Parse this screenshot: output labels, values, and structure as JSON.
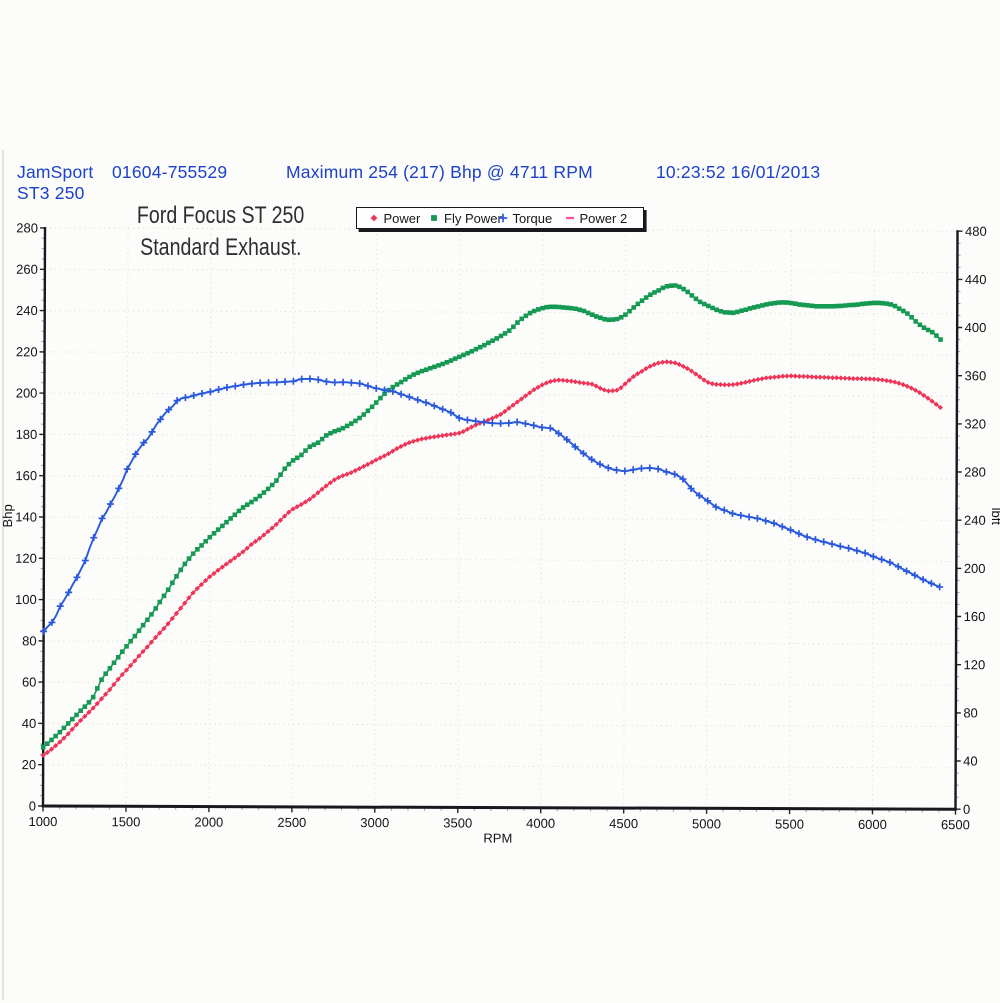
{
  "page": {
    "background": "#fcfcfb"
  },
  "header": {
    "color": "#1c41cc",
    "company": "JamSport",
    "model": "ST3 250",
    "phone": "01604-755529",
    "max_annotation": "Maximum 254 (217) Bhp @ 4711 RPM",
    "timestamp": "10:23:52 16/01/2013"
  },
  "chart_title": {
    "line1": "Ford Focus ST 250",
    "line2": "Standard Exhaust.",
    "color": "#2e2e2e"
  },
  "legend": {
    "items": [
      {
        "label": "Power",
        "marker": "diamond",
        "color": "#ee3557"
      },
      {
        "label": "Fly Power",
        "marker": "square",
        "color": "#169a53"
      },
      {
        "label": "Torque",
        "marker": "plus",
        "color": "#2b59dd"
      },
      {
        "label": "Power 2",
        "marker": "dash",
        "color": "#fa4ea3"
      }
    ]
  },
  "chart_data": {
    "type": "line",
    "title": "Ford Focus ST 250 Standard Exhaust.",
    "xlabel": "RPM",
    "left_ylabel": "Bhp",
    "right_ylabel": "lbft",
    "xlim": [
      1000,
      6500
    ],
    "left_ylim": [
      0,
      280
    ],
    "right_ylim": [
      0,
      480
    ],
    "grid": true,
    "legend_position": "top",
    "x_ticks": [
      1000,
      1500,
      2000,
      2500,
      3000,
      3500,
      4000,
      4500,
      5000,
      5500,
      6000,
      6500
    ],
    "left_y_ticks": [
      0,
      20,
      40,
      60,
      80,
      100,
      120,
      140,
      160,
      180,
      200,
      220,
      240,
      260,
      280
    ],
    "right_y_ticks": [
      0,
      40,
      80,
      120,
      160,
      200,
      240,
      280,
      320,
      360,
      400,
      440,
      480
    ],
    "x": [
      1000,
      1025,
      1050,
      1075,
      1100,
      1125,
      1150,
      1175,
      1200,
      1225,
      1250,
      1275,
      1300,
      1325,
      1350,
      1375,
      1400,
      1425,
      1450,
      1475,
      1500,
      1525,
      1550,
      1575,
      1600,
      1625,
      1650,
      1675,
      1700,
      1725,
      1750,
      1775,
      1800,
      1825,
      1850,
      1875,
      1900,
      1925,
      1950,
      1975,
      2000,
      2025,
      2050,
      2075,
      2100,
      2125,
      2150,
      2175,
      2200,
      2225,
      2250,
      2275,
      2300,
      2325,
      2350,
      2375,
      2400,
      2425,
      2450,
      2475,
      2500,
      2525,
      2550,
      2575,
      2600,
      2625,
      2650,
      2675,
      2700,
      2725,
      2750,
      2775,
      2800,
      2825,
      2850,
      2875,
      2900,
      2925,
      2950,
      2975,
      3000,
      3025,
      3050,
      3075,
      3100,
      3125,
      3150,
      3175,
      3200,
      3225,
      3250,
      3275,
      3300,
      3325,
      3350,
      3375,
      3400,
      3425,
      3450,
      3475,
      3500,
      3525,
      3550,
      3575,
      3600,
      3625,
      3650,
      3675,
      3700,
      3725,
      3750,
      3775,
      3800,
      3825,
      3850,
      3875,
      3900,
      3925,
      3950,
      3975,
      4000,
      4025,
      4050,
      4075,
      4100,
      4125,
      4150,
      4175,
      4200,
      4225,
      4250,
      4275,
      4300,
      4325,
      4350,
      4375,
      4400,
      4425,
      4450,
      4475,
      4500,
      4525,
      4550,
      4575,
      4600,
      4625,
      4650,
      4675,
      4700,
      4725,
      4750,
      4775,
      4800,
      4825,
      4850,
      4875,
      4900,
      4925,
      4950,
      4975,
      5000,
      5025,
      5050,
      5075,
      5100,
      5125,
      5150,
      5175,
      5200,
      5225,
      5250,
      5275,
      5300,
      5325,
      5350,
      5375,
      5400,
      5425,
      5450,
      5475,
      5500,
      5525,
      5550,
      5575,
      5600,
      5625,
      5650,
      5675,
      5700,
      5725,
      5750,
      5775,
      5800,
      5825,
      5850,
      5875,
      5900,
      5925,
      5950,
      5975,
      6000,
      6025,
      6050,
      6075,
      6100,
      6125,
      6150,
      6175,
      6200,
      6225,
      6250,
      6275,
      6300,
      6325,
      6350,
      6375,
      6400
    ],
    "series": [
      {
        "name": "Power",
        "axis": "left",
        "color": "#ee3557",
        "marker": "diamond",
        "marker_every": 1,
        "values": [
          24.5,
          25.9,
          27.5,
          29.2,
          31.0,
          32.9,
          35.0,
          37.2,
          39.5,
          41.5,
          43.5,
          45.5,
          47.5,
          49.7,
          52.0,
          54.2,
          56.5,
          59.0,
          61.5,
          63.8,
          66.0,
          68.2,
          70.5,
          72.8,
          75.0,
          77.2,
          79.5,
          81.8,
          84.0,
          86.2,
          88.5,
          91.0,
          93.5,
          96.0,
          98.5,
          101.1,
          103.5,
          105.6,
          107.5,
          109.5,
          111.3,
          112.9,
          114.5,
          116.0,
          117.5,
          119.0,
          120.5,
          122.0,
          123.5,
          125.2,
          127.0,
          128.5,
          130.0,
          131.6,
          133.3,
          135.0,
          136.8,
          138.8,
          140.8,
          142.7,
          144.3,
          145.4,
          146.5,
          147.7,
          149.0,
          150.5,
          152.2,
          153.9,
          155.5,
          157.1,
          158.5,
          159.6,
          160.5,
          161.2,
          162.0,
          163.0,
          164.0,
          165.0,
          166.0,
          167.1,
          168.2,
          169.2,
          170.2,
          171.3,
          172.5,
          173.7,
          174.8,
          175.8,
          176.6,
          177.3,
          177.9,
          178.4,
          178.8,
          179.2,
          179.5,
          179.8,
          180.1,
          180.4,
          180.7,
          181.0,
          181.3,
          182.1,
          183.2,
          184.3,
          185.3,
          186.1,
          186.8,
          187.7,
          188.6,
          189.5,
          190.5,
          191.9,
          193.5,
          195.0,
          196.5,
          198.0,
          199.5,
          201.0,
          202.5,
          203.7,
          204.8,
          205.8,
          206.5,
          207.0,
          207.2,
          207.1,
          206.9,
          206.7,
          206.4,
          206.1,
          205.8,
          205.6,
          205.3,
          204.4,
          203.3,
          202.5,
          202.0,
          202.1,
          202.4,
          203.6,
          205.5,
          207.3,
          209.0,
          210.4,
          211.6,
          212.9,
          214.0,
          214.9,
          215.6,
          216.0,
          216.2,
          216.0,
          215.7,
          215.0,
          214.0,
          213.0,
          211.8,
          210.4,
          209.0,
          207.5,
          206.3,
          205.7,
          205.4,
          205.3,
          205.2,
          205.2,
          205.3,
          205.6,
          206.0,
          206.4,
          206.9,
          207.4,
          207.8,
          208.2,
          208.6,
          208.8,
          209.0,
          209.2,
          209.4,
          209.5,
          209.6,
          209.5,
          209.4,
          209.4,
          209.3,
          209.2,
          209.1,
          209.1,
          209.0,
          208.9,
          208.8,
          208.8,
          208.7,
          208.6,
          208.5,
          208.4,
          208.4,
          208.4,
          208.3,
          208.3,
          208.2,
          208.0,
          207.8,
          207.5,
          207.2,
          206.8,
          206.2,
          205.6,
          204.8,
          203.9,
          202.9,
          201.7,
          200.4,
          199.0,
          197.6,
          196.1,
          194.6
        ]
      },
      {
        "name": "Fly Power",
        "axis": "left",
        "color": "#169a53",
        "marker": "square",
        "marker_every": 1,
        "values": [
          28.5,
          30.2,
          32.0,
          33.9,
          35.8,
          37.9,
          40.0,
          42.1,
          44.2,
          46.2,
          48.2,
          50.3,
          52.8,
          57.0,
          61.3,
          64.2,
          66.8,
          69.5,
          72.2,
          74.9,
          77.5,
          80.0,
          82.5,
          85.1,
          87.8,
          90.4,
          93.0,
          95.9,
          99.0,
          102.0,
          105.0,
          108.3,
          111.5,
          114.6,
          117.5,
          120.1,
          122.5,
          124.6,
          126.5,
          128.5,
          130.5,
          132.4,
          134.2,
          136.0,
          137.8,
          139.6,
          141.4,
          143.3,
          145.0,
          146.3,
          147.6,
          149.0,
          150.5,
          152.2,
          154.0,
          155.9,
          158.0,
          160.9,
          163.8,
          166.0,
          167.8,
          169.1,
          170.5,
          172.6,
          174.5,
          175.5,
          176.5,
          178.2,
          180.0,
          181.1,
          182.0,
          182.7,
          183.5,
          184.6,
          185.8,
          187.1,
          188.5,
          190.2,
          192.0,
          193.9,
          196.0,
          198.2,
          200.3,
          202.0,
          203.5,
          204.8,
          206.0,
          207.3,
          208.5,
          209.6,
          210.5,
          211.3,
          212.0,
          212.7,
          213.4,
          214.1,
          214.8,
          215.6,
          216.5,
          217.4,
          218.3,
          219.2,
          220.1,
          221.0,
          222.0,
          223.0,
          224.0,
          225.1,
          226.2,
          227.3,
          228.5,
          229.7,
          231.0,
          232.9,
          235.0,
          236.8,
          238.3,
          239.6,
          240.6,
          241.4,
          242.0,
          242.5,
          242.7,
          242.7,
          242.6,
          242.4,
          242.2,
          242.0,
          241.8,
          241.3,
          240.7,
          239.8,
          238.9,
          238.1,
          237.4,
          236.8,
          236.5,
          236.6,
          236.9,
          237.7,
          239.0,
          240.7,
          242.5,
          244.2,
          245.8,
          247.3,
          248.7,
          249.8,
          250.8,
          252.0,
          252.8,
          253.1,
          253.2,
          252.6,
          251.5,
          250.1,
          248.4,
          246.8,
          245.3,
          244.3,
          243.4,
          242.4,
          241.5,
          240.8,
          240.3,
          240.2,
          240.1,
          240.5,
          241.1,
          241.6,
          242.2,
          242.7,
          243.2,
          243.7,
          244.2,
          244.6,
          244.9,
          245.1,
          245.2,
          245.1,
          244.9,
          244.6,
          244.2,
          244.0,
          243.8,
          243.6,
          243.4,
          243.4,
          243.4,
          243.4,
          243.4,
          243.5,
          243.6,
          243.8,
          244.0,
          244.1,
          244.3,
          244.6,
          244.8,
          245.0,
          245.1,
          245.1,
          245.0,
          244.8,
          244.4,
          243.6,
          242.4,
          241.3,
          240.0,
          238.2,
          236.2,
          234.6,
          233.2,
          232.1,
          231.0,
          229.4,
          227.5
        ]
      },
      {
        "name": "Torque",
        "axis": "right",
        "color": "#2b59dd",
        "marker": "plus",
        "marker_every": 2,
        "values": [
          145.0,
          149.0,
          152.5,
          158.0,
          166.0,
          171.5,
          177.5,
          184.0,
          190.0,
          197.0,
          204.0,
          214.0,
          223.0,
          230.5,
          239.0,
          244.0,
          251.0,
          257.0,
          264.0,
          271.0,
          280.0,
          286.0,
          292.5,
          297.5,
          302.0,
          305.5,
          311.0,
          317.0,
          321.5,
          326.0,
          329.5,
          332.5,
          337.0,
          338.8,
          339.6,
          340.2,
          341.3,
          342.2,
          343.0,
          343.8,
          344.5,
          345.4,
          346.4,
          347.2,
          348.0,
          348.6,
          349.2,
          349.9,
          350.5,
          351.0,
          351.4,
          351.7,
          352.0,
          352.2,
          352.3,
          352.4,
          352.5,
          352.7,
          353.0,
          353.2,
          353.4,
          354.4,
          355.3,
          355.4,
          355.5,
          355.3,
          354.8,
          354.0,
          353.3,
          352.8,
          352.6,
          352.7,
          352.8,
          352.7,
          352.4,
          352.2,
          351.8,
          350.9,
          349.8,
          348.7,
          347.8,
          347.1,
          346.5,
          346.0,
          345.4,
          344.3,
          343.0,
          341.9,
          340.7,
          339.5,
          338.3,
          337.2,
          336.1,
          334.8,
          333.4,
          332.1,
          330.7,
          329.4,
          327.9,
          325.6,
          323.5,
          322.5,
          321.8,
          321.3,
          320.8,
          320.4,
          320.0,
          319.5,
          319.2,
          319.1,
          319.1,
          319.2,
          319.3,
          319.8,
          320.2,
          319.7,
          318.9,
          318.2,
          317.5,
          316.6,
          315.8,
          315.5,
          315.2,
          313.5,
          310.9,
          308.5,
          305.8,
          302.9,
          299.9,
          297.1,
          294.4,
          291.8,
          289.4,
          287.3,
          285.4,
          283.8,
          282.4,
          281.3,
          280.6,
          280.1,
          279.9,
          280.3,
          280.9,
          281.6,
          282.1,
          282.3,
          282.4,
          282.2,
          281.7,
          280.6,
          279.3,
          278.4,
          277.4,
          275.7,
          273.4,
          269.6,
          265.5,
          262.4,
          259.8,
          257.6,
          255.4,
          252.7,
          250.3,
          248.8,
          247.6,
          246.2,
          244.9,
          244.1,
          243.4,
          242.7,
          242.1,
          241.5,
          240.9,
          240.0,
          238.9,
          237.9,
          236.9,
          235.6,
          234.2,
          232.8,
          231.4,
          229.9,
          228.4,
          226.9,
          225.6,
          224.5,
          223.5,
          222.5,
          221.6,
          220.7,
          219.8,
          218.9,
          218.0,
          217.2,
          216.4,
          215.4,
          214.4,
          213.4,
          212.4,
          211.0,
          209.5,
          208.3,
          207.2,
          206.0,
          204.7,
          203.0,
          201.2,
          199.4,
          197.6,
          195.9,
          194.2,
          192.4,
          190.6,
          189.0,
          187.4,
          185.9,
          184.5
        ]
      },
      {
        "name": "Power 2",
        "axis": "left",
        "color": "#fa4ea3",
        "marker": "dash",
        "marker_every": 1,
        "values": []
      }
    ]
  }
}
